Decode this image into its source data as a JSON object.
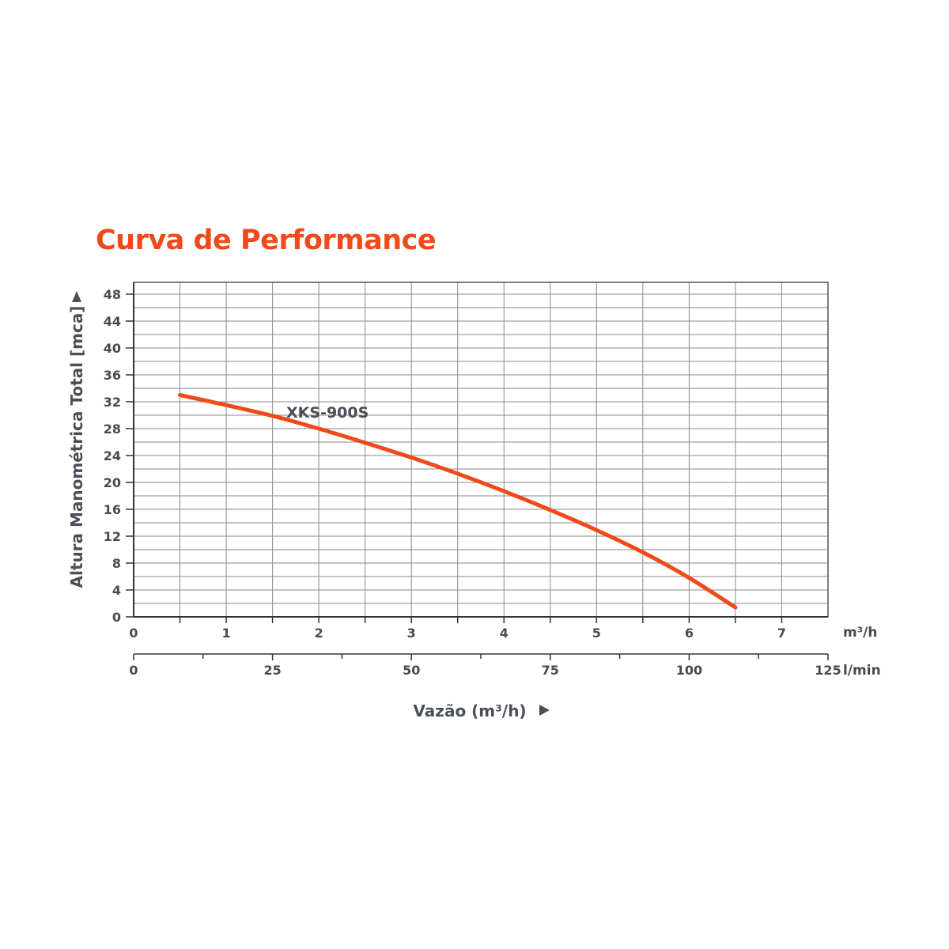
{
  "chart_data": {
    "type": "line",
    "title": "Curva de Performance",
    "ylabel": "Altura Manométrica Total [mca]",
    "xlabel": "Vazão (m³/h)",
    "x_unit": "m³/h",
    "x2_unit": "l/min",
    "ylim": [
      0,
      48
    ],
    "xlim": [
      0,
      7.5
    ],
    "x2lim": [
      0,
      125
    ],
    "yticks": [
      "0",
      "4",
      "8",
      "12",
      "16",
      "20",
      "24",
      "28",
      "32",
      "36",
      "40",
      "44",
      "48"
    ],
    "xticks": [
      "0",
      "1",
      "2",
      "3",
      "4",
      "5",
      "6",
      "7"
    ],
    "x2ticks": [
      "0",
      "25",
      "50",
      "75",
      "100",
      "125"
    ],
    "grid": true,
    "series": [
      {
        "name": "XKS-900S",
        "color": "#f04a1a",
        "x": [
          0.5,
          1,
          1.5,
          2,
          2.5,
          3,
          3.5,
          4,
          4.5,
          5,
          5.5,
          6,
          6.5
        ],
        "y": [
          33,
          31.5,
          29.9,
          28,
          25.9,
          23.7,
          21.3,
          18.7,
          15.9,
          12.9,
          9.6,
          5.8,
          1.4
        ]
      }
    ]
  }
}
